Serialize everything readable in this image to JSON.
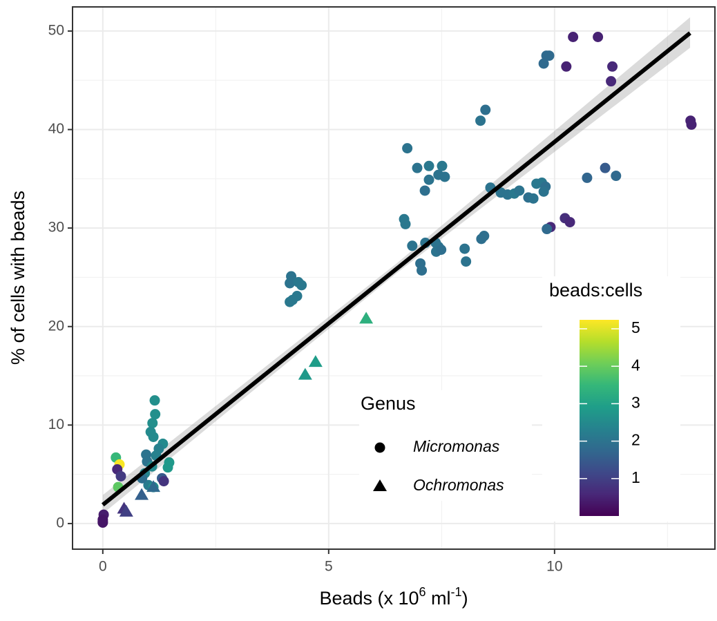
{
  "chart_data": {
    "type": "scatter",
    "ylabel": "% of cells with beads",
    "xlabel_parts": [
      {
        "text": "Beads (x 10"
      },
      {
        "text": "6",
        "sup": true
      },
      {
        "text": " ml"
      },
      {
        "text": "-1",
        "sup": true
      },
      {
        "text": ")"
      }
    ],
    "xlim": [
      -0.67,
      13.55
    ],
    "ylim": [
      -2.6,
      52.45
    ],
    "xticks": [
      0,
      5,
      10
    ],
    "xminor": [
      2.5,
      7.5,
      12.5
    ],
    "yticks": [
      0,
      10,
      20,
      30,
      40,
      50
    ],
    "yminor": [
      5,
      15,
      25,
      35,
      45
    ],
    "grid": true,
    "color_title": "beads:cells",
    "clim": [
      0,
      5.24
    ],
    "cticks": [
      1,
      2,
      3,
      4,
      5
    ],
    "colorscale": [
      "#440154",
      "#482878",
      "#3e4989",
      "#31688e",
      "#26828e",
      "#1f9e89",
      "#35b779",
      "#6ece58",
      "#b5de2b",
      "#fde725"
    ],
    "legend_title": "Genus",
    "series": [
      {
        "name": "Micromonas",
        "shape": "circle",
        "x": [
          10.41,
          10.96,
          9.88,
          9.82,
          9.76,
          10.26,
          11.28,
          11.25,
          13.01,
          13.03,
          8.47,
          8.36,
          6.74,
          6.96,
          7.22,
          7.51,
          7.43,
          7.57,
          7.22,
          7.13,
          11.12,
          11.36,
          10.72,
          8.58,
          8.81,
          8.96,
          9.11,
          9.22,
          9.42,
          9.53,
          9.6,
          9.72,
          9.8,
          9.76,
          9.91,
          9.83,
          10.23,
          10.34,
          6.67,
          6.7,
          6.85,
          7.14,
          7.37,
          7.43,
          7.38,
          7.49,
          7.03,
          7.06,
          8.01,
          8.04,
          8.38,
          8.44,
          4.17,
          4.14,
          4.33,
          4.4,
          4.3,
          4.14,
          4.2,
          1.15,
          1.16,
          1.1,
          1.06,
          1.12,
          1.33,
          1.24,
          1.18,
          0.96,
          0.98,
          1.47,
          1.44,
          1.09,
          0.93,
          1.31,
          1.35,
          1.01,
          1.12,
          0.87,
          0.29,
          0.37,
          0.32,
          0.4,
          0.34,
          0.02,
          0,
          0,
          0
        ],
        "values": [
          49.4,
          49.4,
          47.5,
          47.5,
          46.7,
          46.4,
          46.4,
          44.9,
          40.9,
          40.5,
          42.0,
          40.9,
          38.1,
          36.1,
          36.3,
          36.3,
          35.4,
          35.2,
          34.9,
          33.8,
          36.1,
          35.3,
          35.1,
          34.1,
          33.6,
          33.4,
          33.5,
          33.8,
          33.1,
          33.0,
          34.5,
          34.6,
          34.2,
          33.7,
          30.1,
          29.9,
          31.0,
          30.6,
          30.9,
          30.4,
          28.2,
          28.5,
          28.5,
          28.1,
          27.6,
          27.8,
          26.4,
          25.7,
          27.9,
          26.6,
          28.9,
          29.2,
          25.1,
          24.4,
          24.5,
          24.2,
          23.1,
          22.5,
          22.7,
          12.5,
          11.1,
          10.2,
          9.3,
          8.8,
          8.1,
          7.6,
          6.9,
          7.0,
          6.3,
          6.2,
          5.7,
          5.8,
          5.1,
          4.6,
          4.3,
          3.9,
          3.7,
          4.6,
          6.7,
          6.0,
          5.5,
          4.8,
          3.7,
          0.9,
          0.4,
          0.2,
          0.1
        ],
        "color_values": [
          0.5,
          0.5,
          1.8,
          1.8,
          1.8,
          0.5,
          0.6,
          0.6,
          0.5,
          0.5,
          1.9,
          2.0,
          2.0,
          2.0,
          2.1,
          2.1,
          2.0,
          2.0,
          2.0,
          1.9,
          1.5,
          1.8,
          1.7,
          2.0,
          2.0,
          2.0,
          2.1,
          2.0,
          1.9,
          2.0,
          2.1,
          2.1,
          1.9,
          2.0,
          0.6,
          1.8,
          0.7,
          0.6,
          2.1,
          2.1,
          2.0,
          2.0,
          2.0,
          2.0,
          2.0,
          1.9,
          1.9,
          1.9,
          2.0,
          2.0,
          1.9,
          1.9,
          2.0,
          2.0,
          2.1,
          2.1,
          2.1,
          2.1,
          2.1,
          2.6,
          2.6,
          2.6,
          2.5,
          2.5,
          2.5,
          2.3,
          2.3,
          2.0,
          2.0,
          2.8,
          2.8,
          2.5,
          2.4,
          1.5,
          0.8,
          2.2,
          2.6,
          1.9,
          3.5,
          5.2,
          0.6,
          0.9,
          3.9,
          0.4,
          0.3,
          0.3,
          0.3
        ]
      },
      {
        "name": "Ochromonas",
        "shape": "triangle",
        "x": [
          5.83,
          4.71,
          4.48,
          0.86,
          1.12,
          0.47,
          0.52
        ],
        "values": [
          20.8,
          16.4,
          15.1,
          2.9,
          3.7,
          1.5,
          1.2
        ],
        "color_values": [
          3.3,
          2.9,
          2.8,
          1.6,
          1.8,
          0.8,
          1.0
        ]
      }
    ],
    "fit": {
      "x": [
        0,
        13
      ],
      "y": [
        1.9,
        49.8
      ]
    },
    "band": {
      "x": [
        0,
        6.5,
        13
      ],
      "lower": [
        1.0,
        25.4,
        48.3
      ],
      "upper": [
        2.9,
        26.4,
        51.4
      ]
    }
  }
}
